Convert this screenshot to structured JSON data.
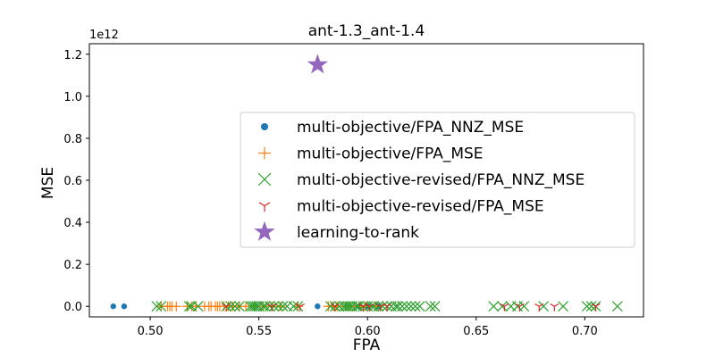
{
  "chart_data": {
    "type": "scatter",
    "title": "ant-1.3_ant-1.4",
    "xlabel": "FPA",
    "ylabel": "MSE",
    "y_offset_text": "1e12",
    "xlim": [
      0.472,
      0.727
    ],
    "ylim": [
      -0.05,
      1.25
    ],
    "xticks": [
      0.5,
      0.55,
      0.6,
      0.65,
      0.7
    ],
    "xtick_labels": [
      "0.50",
      "0.55",
      "0.60",
      "0.65",
      "0.70"
    ],
    "yticks": [
      0.0,
      0.2,
      0.4,
      0.6,
      0.8,
      1.0,
      1.2
    ],
    "ytick_labels": [
      "0.0",
      "0.2",
      "0.4",
      "0.6",
      "0.8",
      "1.0",
      "1.2"
    ],
    "grid": false,
    "legend_position": "center-right",
    "series": [
      {
        "name": "multi-objective/FPA_NNZ_MSE",
        "marker": "dot",
        "color": "#1f77b4",
        "x": [
          0.483,
          0.488,
          0.577,
          0.596,
          0.6,
          0.605
        ],
        "y": [
          0,
          0,
          0,
          0,
          0,
          0
        ]
      },
      {
        "name": "multi-objective/FPA_MSE",
        "marker": "plus",
        "color": "#ff7f0e",
        "x": [
          0.505,
          0.508,
          0.509,
          0.51,
          0.512,
          0.517,
          0.519,
          0.521,
          0.525,
          0.527,
          0.528,
          0.53,
          0.531,
          0.532,
          0.534,
          0.536,
          0.538,
          0.541,
          0.544,
          0.548,
          0.552,
          0.556,
          0.56,
          0.568,
          0.582,
          0.584,
          0.586,
          0.59,
          0.592,
          0.594,
          0.597,
          0.599,
          0.604
        ],
        "y": [
          0,
          0,
          0,
          0,
          0,
          0,
          0,
          0,
          0,
          0,
          0,
          0,
          0,
          0,
          0,
          0,
          0,
          0,
          0,
          0,
          0,
          0,
          0,
          0,
          0,
          0,
          0,
          0,
          0,
          0,
          0,
          0,
          0
        ]
      },
      {
        "name": "multi-objective-revised/FPA_NNZ_MSE",
        "marker": "x",
        "color": "#2ca02c",
        "x": [
          0.503,
          0.505,
          0.518,
          0.519,
          0.522,
          0.535,
          0.537,
          0.539,
          0.541,
          0.546,
          0.547,
          0.548,
          0.549,
          0.55,
          0.552,
          0.553,
          0.555,
          0.557,
          0.559,
          0.561,
          0.563,
          0.566,
          0.568,
          0.583,
          0.585,
          0.587,
          0.589,
          0.59,
          0.591,
          0.592,
          0.593,
          0.595,
          0.596,
          0.598,
          0.6,
          0.602,
          0.603,
          0.605,
          0.607,
          0.609,
          0.611,
          0.613,
          0.614,
          0.616,
          0.618,
          0.62,
          0.622,
          0.624,
          0.629,
          0.631,
          0.658,
          0.662,
          0.666,
          0.669,
          0.672,
          0.681,
          0.69,
          0.701,
          0.703,
          0.705,
          0.715
        ],
        "y": [
          0,
          0,
          0,
          0,
          0,
          0,
          0,
          0,
          0,
          0,
          0,
          0,
          0,
          0,
          0,
          0,
          0,
          0,
          0,
          0,
          0,
          0,
          0,
          0,
          0,
          0,
          0,
          0,
          0,
          0,
          0,
          0,
          0,
          0,
          0,
          0,
          0,
          0,
          0,
          0,
          0,
          0,
          0,
          0,
          0,
          0,
          0,
          0,
          0,
          0,
          0,
          0,
          0,
          0,
          0,
          0,
          0,
          0,
          0,
          0,
          0
        ]
      },
      {
        "name": "multi-objective-revised/FPA_MSE",
        "marker": "tri_down",
        "color": "#d62728",
        "x": [
          0.535,
          0.556,
          0.569,
          0.585,
          0.598,
          0.601,
          0.606,
          0.609,
          0.663,
          0.67,
          0.679,
          0.686,
          0.705
        ],
        "y": [
          0,
          0,
          0,
          0,
          0,
          0,
          0,
          0,
          0,
          0,
          0,
          0,
          0
        ]
      },
      {
        "name": "learning-to-rank",
        "marker": "star",
        "color": "#9467bd",
        "x": [
          0.577
        ],
        "y": [
          1.15
        ]
      }
    ]
  }
}
